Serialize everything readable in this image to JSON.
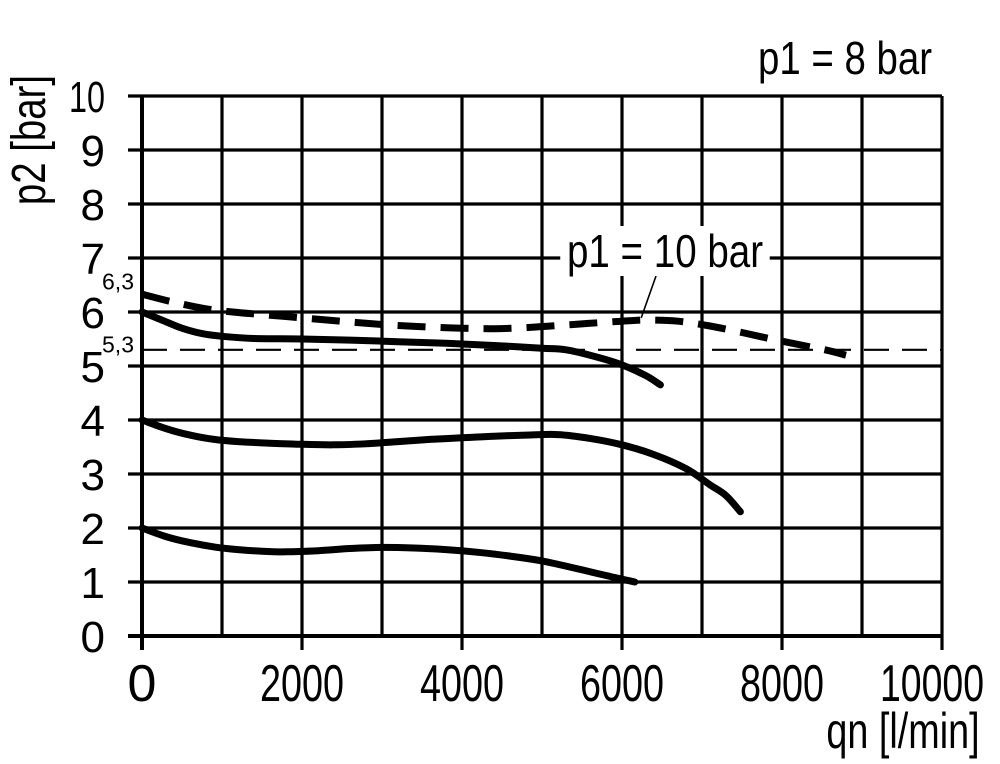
{
  "page": {
    "background": "#ffffff",
    "ink": "#000000"
  },
  "header": {
    "condition_label": "p1 = 8 bar"
  },
  "annotation": {
    "label": "p1 = 10 bar"
  },
  "y_axis": {
    "title": "p2 [bar]",
    "tick_labels": [
      "10",
      "9",
      "8",
      "7",
      "6",
      "5",
      "4",
      "3",
      "2",
      "1",
      "0"
    ],
    "tick_values": [
      10,
      9,
      8,
      7,
      6,
      5,
      4,
      3,
      2,
      1,
      0
    ],
    "special_labels": [
      {
        "text": "6,3",
        "value": 6.3
      },
      {
        "text": "5,3",
        "value": 5.3
      }
    ]
  },
  "x_axis": {
    "title": "qn [l/min]",
    "tick_labels": [
      "0",
      "2000",
      "4000",
      "6000",
      "8000",
      "10000"
    ],
    "tick_values": [
      0,
      2000,
      4000,
      6000,
      8000,
      10000
    ]
  },
  "chart_data": {
    "type": "line",
    "title": "p1 = 8 bar",
    "xlabel": "qn [l/min]",
    "ylabel": "p2 [bar]",
    "xlim": [
      0,
      10000
    ],
    "ylim": [
      0,
      10
    ],
    "x_grid_step": 1000,
    "y_grid_step": 1,
    "grid": true,
    "legend_position": "none",
    "annotation": {
      "text": "p1 = 10 bar",
      "points_to_x": 6240,
      "points_to_y": 5.89
    },
    "reference_line": {
      "y": 5.3,
      "label": "5,3",
      "style": "thin-dashed"
    },
    "series": [
      {
        "id": "inlet-10bar-dashed",
        "label": "p1 = 10 bar",
        "line": "dashed-thick",
        "start_marker_label": "6,3",
        "points": [
          [
            0,
            6.33
          ],
          [
            400,
            6.18
          ],
          [
            800,
            6.06
          ],
          [
            1200,
            5.99
          ],
          [
            1600,
            5.94
          ],
          [
            2000,
            5.89
          ],
          [
            2400,
            5.84
          ],
          [
            2800,
            5.79
          ],
          [
            3200,
            5.75
          ],
          [
            3600,
            5.72
          ],
          [
            4000,
            5.7
          ],
          [
            4400,
            5.69
          ],
          [
            4800,
            5.71
          ],
          [
            5200,
            5.75
          ],
          [
            5600,
            5.79
          ],
          [
            6000,
            5.83
          ],
          [
            6300,
            5.85
          ],
          [
            6700,
            5.83
          ],
          [
            7100,
            5.74
          ],
          [
            7500,
            5.62
          ],
          [
            7900,
            5.49
          ],
          [
            8300,
            5.37
          ],
          [
            8600,
            5.28
          ],
          [
            8800,
            5.2
          ]
        ]
      },
      {
        "id": "upper-solid-curve",
        "line": "solid-thick",
        "points": [
          [
            0,
            6.0
          ],
          [
            250,
            5.85
          ],
          [
            500,
            5.7
          ],
          [
            750,
            5.6
          ],
          [
            1000,
            5.55
          ],
          [
            1400,
            5.51
          ],
          [
            2000,
            5.5
          ],
          [
            2600,
            5.48
          ],
          [
            3200,
            5.45
          ],
          [
            3800,
            5.42
          ],
          [
            4400,
            5.38
          ],
          [
            5000,
            5.33
          ],
          [
            5300,
            5.3
          ],
          [
            5700,
            5.16
          ],
          [
            6000,
            5.02
          ],
          [
            6300,
            4.82
          ],
          [
            6480,
            4.65
          ]
        ]
      },
      {
        "id": "middle-solid-curve",
        "line": "solid-thick",
        "points": [
          [
            0,
            4.0
          ],
          [
            300,
            3.84
          ],
          [
            600,
            3.72
          ],
          [
            900,
            3.64
          ],
          [
            1200,
            3.6
          ],
          [
            1600,
            3.57
          ],
          [
            2000,
            3.55
          ],
          [
            2400,
            3.54
          ],
          [
            2800,
            3.56
          ],
          [
            3200,
            3.6
          ],
          [
            3600,
            3.64
          ],
          [
            4000,
            3.67
          ],
          [
            4400,
            3.7
          ],
          [
            4800,
            3.72
          ],
          [
            5200,
            3.73
          ],
          [
            5600,
            3.66
          ],
          [
            6000,
            3.54
          ],
          [
            6400,
            3.36
          ],
          [
            6800,
            3.1
          ],
          [
            7100,
            2.8
          ],
          [
            7300,
            2.6
          ],
          [
            7480,
            2.3
          ]
        ]
      },
      {
        "id": "lower-solid-curve",
        "line": "solid-thick",
        "points": [
          [
            0,
            2.0
          ],
          [
            300,
            1.84
          ],
          [
            600,
            1.73
          ],
          [
            900,
            1.65
          ],
          [
            1200,
            1.6
          ],
          [
            1500,
            1.57
          ],
          [
            1800,
            1.56
          ],
          [
            2200,
            1.58
          ],
          [
            2600,
            1.62
          ],
          [
            3000,
            1.64
          ],
          [
            3400,
            1.63
          ],
          [
            3800,
            1.6
          ],
          [
            4200,
            1.55
          ],
          [
            4600,
            1.48
          ],
          [
            5000,
            1.39
          ],
          [
            5400,
            1.26
          ],
          [
            5800,
            1.12
          ],
          [
            6160,
            1.0
          ]
        ]
      }
    ]
  }
}
